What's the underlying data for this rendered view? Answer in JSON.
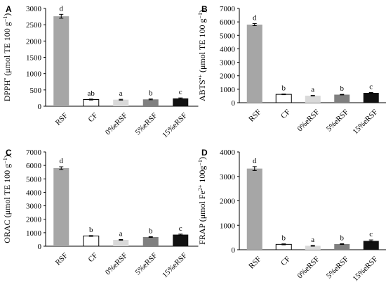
{
  "chart_data": [
    {
      "type": "bar",
      "panel": "A",
      "ylabel_main": "DPPH",
      "ylabel_sup": "•",
      "ylabel_mid": " (μmol TE 100 g",
      "ylabel_sup2": "−1",
      "ylabel_end": ")",
      "categories": [
        "RSF",
        "CF",
        "0%eRSF",
        "5%eRSF",
        "15%eRSF"
      ],
      "values": [
        2760,
        205,
        200,
        210,
        240
      ],
      "errors": [
        60,
        15,
        12,
        12,
        15
      ],
      "letters": [
        "d",
        "ab",
        "a",
        "b",
        "c"
      ],
      "colors": [
        "#a6a6a6",
        "#ffffff",
        "#d9d9d9",
        "#808080",
        "#111111"
      ],
      "ylim": [
        0,
        3000
      ],
      "yticks": [
        0,
        500,
        1000,
        1500,
        2000,
        2500,
        3000
      ]
    },
    {
      "type": "bar",
      "panel": "B",
      "ylabel_main": "ABTS",
      "ylabel_sup": "•+",
      "ylabel_mid": " (μmol TE 100 g",
      "ylabel_sup2": "−1",
      "ylabel_end": ")",
      "categories": [
        "RSF",
        "CF",
        "0%eRSF",
        "5%eRSF",
        "15%eRSF"
      ],
      "values": [
        5800,
        620,
        520,
        600,
        730
      ],
      "errors": [
        80,
        25,
        20,
        20,
        25
      ],
      "letters": [
        "d",
        "b",
        "a",
        "b",
        "c"
      ],
      "colors": [
        "#a6a6a6",
        "#ffffff",
        "#d9d9d9",
        "#808080",
        "#111111"
      ],
      "ylim": [
        0,
        7000
      ],
      "yticks": [
        0,
        1000,
        2000,
        3000,
        4000,
        5000,
        6000,
        7000
      ]
    },
    {
      "type": "bar",
      "panel": "C",
      "ylabel_main": "ORAC",
      "ylabel_sup": "",
      "ylabel_mid": " (μmol TE 100 g",
      "ylabel_sup2": "−1",
      "ylabel_end": ")",
      "categories": [
        "RSF",
        "CF",
        "0%eRSF",
        "5%eRSF",
        "15%eRSF"
      ],
      "values": [
        5800,
        760,
        470,
        680,
        860
      ],
      "errors": [
        100,
        30,
        25,
        25,
        40
      ],
      "letters": [
        "d",
        "b",
        "a",
        "b",
        "c"
      ],
      "colors": [
        "#a6a6a6",
        "#ffffff",
        "#d9d9d9",
        "#808080",
        "#111111"
      ],
      "ylim": [
        0,
        7000
      ],
      "yticks": [
        0,
        1000,
        2000,
        3000,
        4000,
        5000,
        6000,
        7000
      ]
    },
    {
      "type": "bar",
      "panel": "D",
      "ylabel_main": "FRAP",
      "ylabel_sup": "",
      "ylabel_mid": " (μmol Fe",
      "ylabel_sup2": "2+",
      "ylabel_end": " 100g",
      "ylabel_sup3": "−1",
      "ylabel_end2": ")",
      "categories": [
        "RSF",
        "CF",
        "0%eRSF",
        "5%eRSF",
        "15%eRSF"
      ],
      "values": [
        3320,
        220,
        160,
        230,
        360
      ],
      "errors": [
        80,
        20,
        15,
        15,
        40
      ],
      "letters": [
        "d",
        "b",
        "a",
        "b",
        "c"
      ],
      "colors": [
        "#a6a6a6",
        "#ffffff",
        "#d9d9d9",
        "#808080",
        "#111111"
      ],
      "ylim": [
        0,
        4000
      ],
      "yticks": [
        0,
        1000,
        2000,
        3000,
        4000
      ]
    }
  ]
}
